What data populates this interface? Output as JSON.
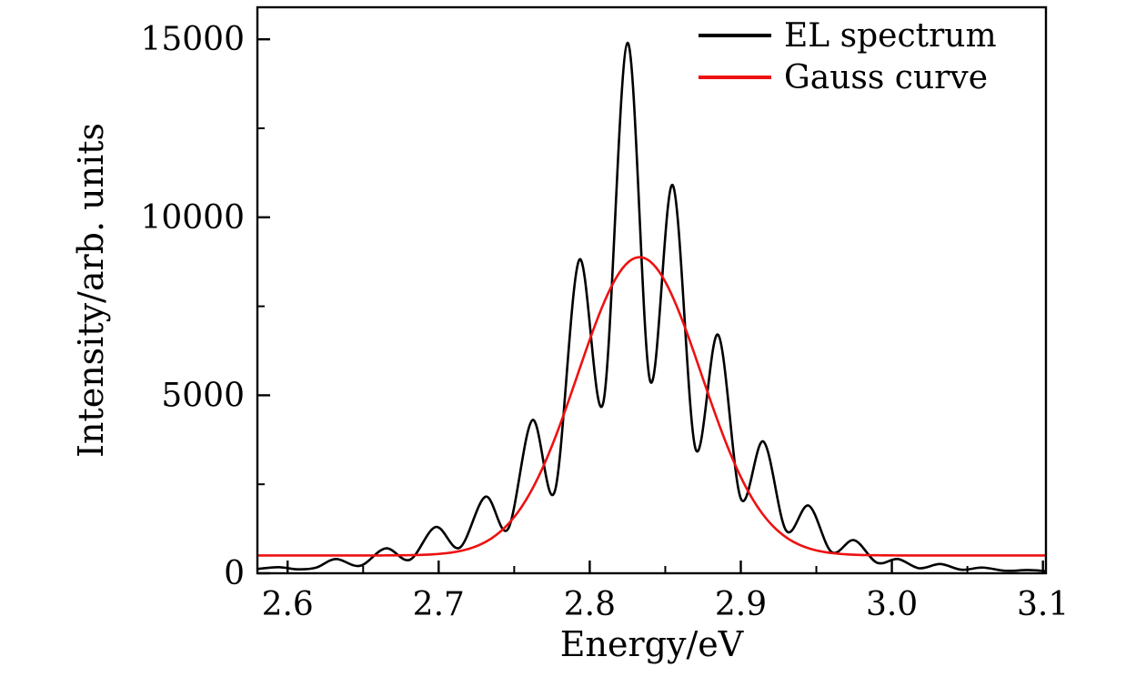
{
  "chart_data": {
    "type": "line",
    "xlabel": "Energy/eV",
    "ylabel": "Intensity/arb. units",
    "xlim": [
      2.58,
      3.102
    ],
    "ylim": [
      0,
      15900
    ],
    "x_ticks": [
      2.6,
      2.7,
      2.8,
      2.9,
      3.0,
      3.1
    ],
    "x_tick_labels": [
      "2.6",
      "2.7",
      "2.8",
      "2.9",
      "3.0",
      "3.1"
    ],
    "y_ticks": [
      0,
      5000,
      10000,
      15000
    ],
    "y_tick_labels": [
      "0",
      "5000",
      "10000",
      "15000"
    ],
    "x_minor_step": 0.05,
    "y_minor_step": 2500,
    "grid": false,
    "legend_position": "top-right",
    "background": "#ffffff",
    "frame_color": "#000000",
    "series": [
      {
        "name": "EL spectrum",
        "color": "#000000",
        "points": [
          [
            2.58,
            120
          ],
          [
            2.594,
            170
          ],
          [
            2.607,
            110
          ],
          [
            2.619,
            160
          ],
          [
            2.632,
            400
          ],
          [
            2.648,
            210
          ],
          [
            2.665,
            700
          ],
          [
            2.681,
            380
          ],
          [
            2.698,
            1300
          ],
          [
            2.714,
            720
          ],
          [
            2.731,
            2150
          ],
          [
            2.746,
            1250
          ],
          [
            2.762,
            4300
          ],
          [
            2.777,
            2320
          ],
          [
            2.793,
            8800
          ],
          [
            2.809,
            4800
          ],
          [
            2.825,
            14900
          ],
          [
            2.84,
            5400
          ],
          [
            2.855,
            10900
          ],
          [
            2.87,
            3500
          ],
          [
            2.885,
            6700
          ],
          [
            2.9,
            2100
          ],
          [
            2.915,
            3700
          ],
          [
            2.93,
            1200
          ],
          [
            2.945,
            1900
          ],
          [
            2.96,
            600
          ],
          [
            2.975,
            930
          ],
          [
            2.99,
            300
          ],
          [
            3.004,
            400
          ],
          [
            3.018,
            140
          ],
          [
            3.032,
            260
          ],
          [
            3.046,
            100
          ],
          [
            3.06,
            160
          ],
          [
            3.075,
            70
          ],
          [
            3.09,
            90
          ],
          [
            3.102,
            60
          ]
        ]
      },
      {
        "name": "Gauss curve",
        "color": "#ee1111",
        "gauss": {
          "y0": 500,
          "amplitude": 8380,
          "center": 2.833,
          "sigma": 0.041
        },
        "sample_step": 0.002
      }
    ]
  }
}
